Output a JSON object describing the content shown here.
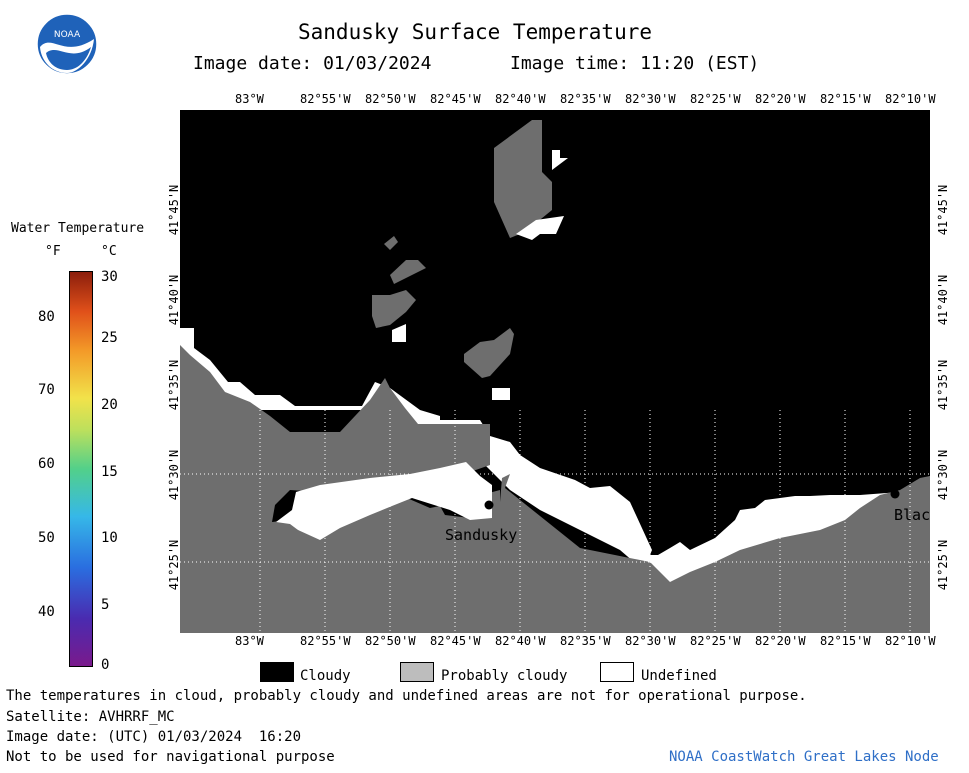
{
  "header": {
    "title": "Sandusky Surface Temperature",
    "image_date_label": "Image date:",
    "image_date": "01/03/2024",
    "image_time_label": "Image time:",
    "image_time": "11:20 (EST)",
    "logo_text": "NOAA"
  },
  "map": {
    "lon_labels": [
      "83°W",
      "82°55'W",
      "82°50'W",
      "82°45'W",
      "82°40'W",
      "82°35'W",
      "82°30'W",
      "82°25'W",
      "82°20'W",
      "82°15'W",
      "82°10'W"
    ],
    "lat_labels": [
      "41°45'N",
      "41°40'N",
      "41°35'N",
      "41°30'N",
      "41°25'N"
    ],
    "cities": [
      {
        "name": "Sandusky"
      },
      {
        "name": "Blac"
      }
    ],
    "colors": {
      "cloudy": "#000000",
      "probably_cloudy": "#6e6e6e",
      "undefined": "#ffffff"
    }
  },
  "colorbar": {
    "title": "Water Temperature",
    "unit_f": "°F",
    "unit_c": "°C",
    "f_ticks": [
      "80",
      "70",
      "60",
      "50",
      "40"
    ],
    "c_ticks": [
      "30",
      "25",
      "20",
      "15",
      "10",
      "5",
      "0"
    ]
  },
  "legend": {
    "cloudy": "Cloudy",
    "probably_cloudy": "Probably cloudy",
    "undefined": "Undefined"
  },
  "footer": {
    "disclaimer": "The temperatures in cloud, probably cloudy and undefined areas are not for operational purpose.",
    "satellite": "Satellite: AVHRRF_MC",
    "utc_date": "Image date: (UTC) 01/03/2024  16:20",
    "navigation": "Not to be used for navigational purpose",
    "credit": "NOAA CoastWatch Great Lakes Node"
  }
}
